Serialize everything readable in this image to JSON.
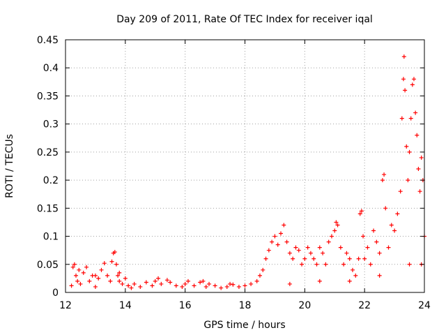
{
  "chart_data": {
    "type": "scatter",
    "title": "Day 209 of 2011, Rate Of TEC Index for receiver iqal",
    "xlabel": "GPS time / hours",
    "ylabel": "ROTI / TECUs",
    "xlim": [
      12,
      24
    ],
    "ylim": [
      0,
      0.45
    ],
    "x_ticks": [
      12,
      14,
      16,
      18,
      20,
      22,
      24
    ],
    "x_tick_labels": [
      "12",
      "14",
      "16",
      "18",
      "20",
      "22",
      "24"
    ],
    "y_ticks": [
      0,
      0.05,
      0.1,
      0.15,
      0.2,
      0.25,
      0.3,
      0.35,
      0.4,
      0.45
    ],
    "y_tick_labels": [
      "0",
      "0.05",
      "0.1",
      "0.15",
      "0.2",
      "0.25",
      "0.3",
      "0.35",
      "0.4",
      "0.45"
    ],
    "grid": true,
    "marker": "+",
    "color": "#ff0000",
    "series": [
      {
        "name": "ROTI",
        "points": [
          [
            12.2,
            0.012
          ],
          [
            12.25,
            0.045
          ],
          [
            12.3,
            0.05
          ],
          [
            12.35,
            0.03
          ],
          [
            12.4,
            0.02
          ],
          [
            12.45,
            0.04
          ],
          [
            12.5,
            0.015
          ],
          [
            12.6,
            0.035
          ],
          [
            12.7,
            0.045
          ],
          [
            12.8,
            0.02
          ],
          [
            12.9,
            0.03
          ],
          [
            13.0,
            0.01
          ],
          [
            13.1,
            0.025
          ],
          [
            13.2,
            0.04
          ],
          [
            13.3,
            0.052
          ],
          [
            13.4,
            0.03
          ],
          [
            13.5,
            0.02
          ],
          [
            13.55,
            0.055
          ],
          [
            13.6,
            0.07
          ],
          [
            13.65,
            0.072
          ],
          [
            13.7,
            0.05
          ],
          [
            13.75,
            0.03
          ],
          [
            13.8,
            0.02
          ],
          [
            13.9,
            0.015
          ],
          [
            14.0,
            0.025
          ],
          [
            14.1,
            0.012
          ],
          [
            14.2,
            0.008
          ],
          [
            14.3,
            0.015
          ],
          [
            14.5,
            0.01
          ],
          [
            14.7,
            0.018
          ],
          [
            14.9,
            0.012
          ],
          [
            15.0,
            0.02
          ],
          [
            15.2,
            0.015
          ],
          [
            15.4,
            0.022
          ],
          [
            15.5,
            0.018
          ],
          [
            15.7,
            0.012
          ],
          [
            15.9,
            0.01
          ],
          [
            16.0,
            0.015
          ],
          [
            16.1,
            0.02
          ],
          [
            16.3,
            0.012
          ],
          [
            16.5,
            0.018
          ],
          [
            16.7,
            0.01
          ],
          [
            16.8,
            0.015
          ],
          [
            17.0,
            0.012
          ],
          [
            17.2,
            0.008
          ],
          [
            17.4,
            0.01
          ],
          [
            17.6,
            0.014
          ],
          [
            17.8,
            0.01
          ],
          [
            18.0,
            0.012
          ],
          [
            18.2,
            0.015
          ],
          [
            18.4,
            0.02
          ],
          [
            18.5,
            0.03
          ],
          [
            18.6,
            0.04
          ],
          [
            18.7,
            0.06
          ],
          [
            18.8,
            0.075
          ],
          [
            18.9,
            0.09
          ],
          [
            19.0,
            0.1
          ],
          [
            19.1,
            0.085
          ],
          [
            19.2,
            0.105
          ],
          [
            19.3,
            0.12
          ],
          [
            19.4,
            0.09
          ],
          [
            19.5,
            0.07
          ],
          [
            19.6,
            0.06
          ],
          [
            19.7,
            0.08
          ],
          [
            19.8,
            0.075
          ],
          [
            19.9,
            0.05
          ],
          [
            20.0,
            0.06
          ],
          [
            20.1,
            0.08
          ],
          [
            20.2,
            0.07
          ],
          [
            20.3,
            0.06
          ],
          [
            20.4,
            0.05
          ],
          [
            20.5,
            0.08
          ],
          [
            20.6,
            0.07
          ],
          [
            20.7,
            0.05
          ],
          [
            20.8,
            0.09
          ],
          [
            20.9,
            0.1
          ],
          [
            21.0,
            0.11
          ],
          [
            21.05,
            0.125
          ],
          [
            21.1,
            0.12
          ],
          [
            21.2,
            0.08
          ],
          [
            21.3,
            0.05
          ],
          [
            21.4,
            0.07
          ],
          [
            21.5,
            0.06
          ],
          [
            21.6,
            0.04
          ],
          [
            21.7,
            0.03
          ],
          [
            21.8,
            0.06
          ],
          [
            21.85,
            0.14
          ],
          [
            21.9,
            0.145
          ],
          [
            21.95,
            0.1
          ],
          [
            22.0,
            0.06
          ],
          [
            22.1,
            0.08
          ],
          [
            22.2,
            0.05
          ],
          [
            22.3,
            0.11
          ],
          [
            22.4,
            0.09
          ],
          [
            22.5,
            0.07
          ],
          [
            22.6,
            0.2
          ],
          [
            22.65,
            0.21
          ],
          [
            22.7,
            0.15
          ],
          [
            22.8,
            0.08
          ],
          [
            22.9,
            0.12
          ],
          [
            23.0,
            0.11
          ],
          [
            23.1,
            0.14
          ],
          [
            23.2,
            0.18
          ],
          [
            23.25,
            0.31
          ],
          [
            23.3,
            0.38
          ],
          [
            23.32,
            0.42
          ],
          [
            23.35,
            0.36
          ],
          [
            23.4,
            0.26
          ],
          [
            23.45,
            0.2
          ],
          [
            23.5,
            0.25
          ],
          [
            23.55,
            0.31
          ],
          [
            23.6,
            0.37
          ],
          [
            23.65,
            0.38
          ],
          [
            23.7,
            0.32
          ],
          [
            23.75,
            0.28
          ],
          [
            23.8,
            0.22
          ],
          [
            23.85,
            0.18
          ],
          [
            23.9,
            0.24
          ],
          [
            23.95,
            0.2
          ],
          [
            24.0,
            0.1
          ],
          [
            13.0,
            0.03
          ],
          [
            13.8,
            0.035
          ],
          [
            15.1,
            0.025
          ],
          [
            16.6,
            0.02
          ],
          [
            17.5,
            0.015
          ],
          [
            19.5,
            0.015
          ],
          [
            20.5,
            0.02
          ],
          [
            21.5,
            0.02
          ],
          [
            22.5,
            0.03
          ],
          [
            23.5,
            0.05
          ],
          [
            23.9,
            0.05
          ]
        ]
      }
    ]
  }
}
